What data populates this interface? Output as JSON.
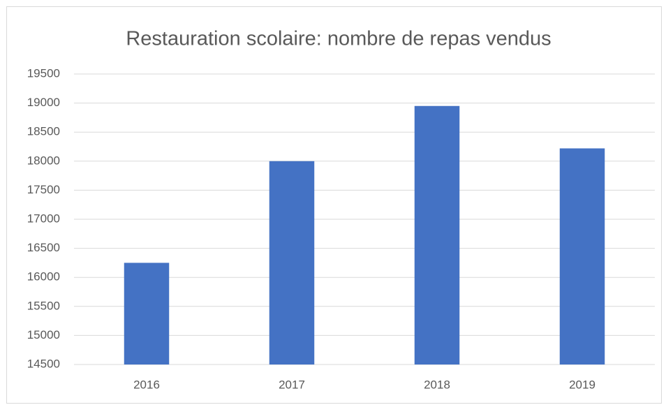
{
  "chart_data": {
    "type": "bar",
    "title": "Restauration scolaire: nombre de repas vendus",
    "categories": [
      "2016",
      "2017",
      "2018",
      "2019"
    ],
    "values": [
      16250,
      18000,
      18950,
      18220
    ],
    "color": "#4472c4",
    "ylim": [
      14500,
      19500
    ],
    "yticks": [
      14500,
      15000,
      15500,
      16000,
      16500,
      17000,
      17500,
      18000,
      18500,
      19000,
      19500
    ],
    "grid": true
  }
}
